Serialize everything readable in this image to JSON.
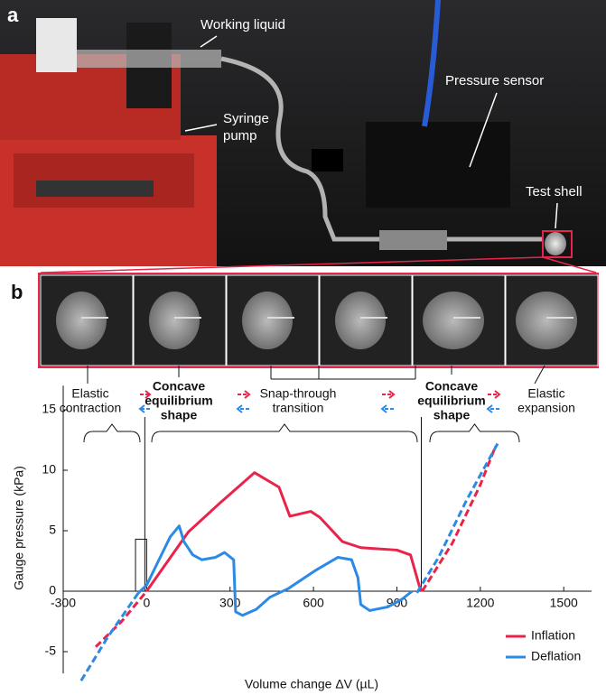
{
  "figure": {
    "panel_labels": [
      "a",
      "b"
    ],
    "photo_annotations": [
      "Working liquid",
      [
        "Syringe",
        "pump"
      ],
      "Pressure sensor",
      "Test shell"
    ],
    "state_labels": [
      [
        "Elastic",
        "contraction"
      ],
      [
        "Concave",
        "equilibrium",
        "shape"
      ],
      [
        "Snap-through",
        "transition"
      ],
      [
        "Concave",
        "equilibrium",
        "shape"
      ],
      [
        "Elastic",
        "expansion"
      ]
    ]
  },
  "chart_data": {
    "type": "line",
    "x_label": "Volume change ΔV (µL)",
    "y_label": "Gauge pressure (kPa)",
    "xlim": [
      -300,
      1600
    ],
    "xticks": [
      -300,
      0,
      300,
      600,
      900,
      1200,
      1500
    ],
    "ylim": [
      -6.8,
      17
    ],
    "yticks": [
      -5,
      0,
      5,
      10,
      15
    ],
    "legend": "lower right",
    "series": [
      {
        "name": "Inflation",
        "color": "#e8244a",
        "pieces": [
          {
            "dashed": true,
            "x": [
              -183,
              -90,
              0
            ],
            "values": [
              -4.6,
              -2.5,
              0
            ]
          },
          {
            "dashed": false,
            "x": [
              0,
              150,
              264,
              388,
              476,
              515,
              590,
              623,
              704,
              770,
              900,
              949,
              981,
              991
            ],
            "values": [
              0,
              4.9,
              7.3,
              9.8,
              8.6,
              6.2,
              6.6,
              6.1,
              4.1,
              3.6,
              3.4,
              3,
              0.4,
              0
            ]
          },
          {
            "dashed": true,
            "x": [
              991,
              1100,
              1200,
              1255
            ],
            "values": [
              0,
              4,
              8.8,
              12
            ]
          }
        ]
      },
      {
        "name": "Deflation",
        "color": "#2a8ae6",
        "pieces": [
          {
            "dashed": true,
            "x": [
              1262,
              1150,
              1050,
              965
            ],
            "values": [
              12.2,
              7.5,
              2.8,
              -0.4
            ]
          },
          {
            "dashed": false,
            "x": [
              955,
              916,
              867,
              802,
              770,
              760,
              737,
              688,
              606,
              508,
              443,
              394,
              345,
              320,
              313,
              280,
              248,
              199,
              166,
              134,
              117,
              85,
              36,
              0,
              -30
            ],
            "values": [
              0,
              -0.7,
              -1.3,
              -1.6,
              -1.1,
              1.1,
              2.6,
              2.8,
              1.7,
              0.2,
              -0.5,
              -1.5,
              -2,
              -1.7,
              2.6,
              3.2,
              2.8,
              2.6,
              3,
              4.1,
              5.4,
              4.5,
              2.2,
              0.5,
              -0.15
            ]
          },
          {
            "dashed": true,
            "x": [
              -30,
              -140,
              -241
            ],
            "values": [
              -0.15,
              -3.8,
              -7.6
            ]
          }
        ]
      }
    ]
  }
}
